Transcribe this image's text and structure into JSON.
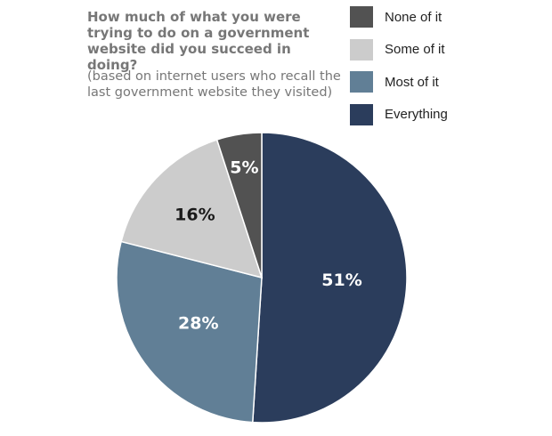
{
  "chart_data": {
    "type": "pie",
    "title": "How much of what you were trying to do on a government website did you succeed in doing?",
    "subtitle": "(based on internet users who recall the last government website they visited)",
    "categories": [
      "Everything",
      "Most of it",
      "Some of it",
      "None of it"
    ],
    "values": [
      51,
      28,
      16,
      5
    ],
    "labels": [
      "51%",
      "28%",
      "16%",
      "5%"
    ],
    "colors": [
      "#2b3d5c",
      "#617f96",
      "#cccccc",
      "#525252"
    ],
    "label_colors": [
      "#ffffff",
      "#ffffff",
      "#1a1a1a",
      "#ffffff"
    ],
    "legend": {
      "placement": "top-right",
      "items": [
        {
          "label": "None of it",
          "color": "#525252"
        },
        {
          "label": "Some of it",
          "color": "#cccccc"
        },
        {
          "label": "Most of it",
          "color": "#617f96"
        },
        {
          "label": "Everything",
          "color": "#2b3d5c"
        }
      ]
    }
  }
}
